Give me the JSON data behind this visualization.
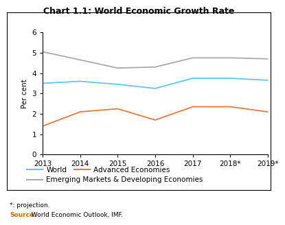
{
  "title": "Chart 1.1: World Economic Growth Rate",
  "ylabel": "Per cent",
  "years": [
    2013,
    2014,
    2015,
    2016,
    2017,
    2018,
    2019
  ],
  "x_labels": [
    "2013",
    "2014",
    "2015",
    "2016",
    "2017",
    "2018*",
    "2019*"
  ],
  "world": [
    3.5,
    3.6,
    3.45,
    3.25,
    3.75,
    3.75,
    3.65
  ],
  "advanced": [
    1.4,
    2.1,
    2.25,
    1.7,
    2.35,
    2.35,
    2.1
  ],
  "emerging": [
    5.05,
    4.65,
    4.25,
    4.3,
    4.75,
    4.75,
    4.7
  ],
  "world_color": "#5bc8f5",
  "advanced_color": "#e8783c",
  "emerging_color": "#aaaaaa",
  "ylim": [
    0,
    6
  ],
  "yticks": [
    0,
    1,
    2,
    3,
    4,
    5,
    6
  ],
  "footnote1": "*: projection.",
  "footnote2_bold": "Source:",
  "footnote2_rest": " World Economic Outlook, IMF.",
  "source_color": "#cc6600",
  "bg_color": "#ffffff",
  "title_fontsize": 9,
  "axis_fontsize": 7.5,
  "legend_fontsize": 7.5,
  "tick_fontsize": 7.5
}
